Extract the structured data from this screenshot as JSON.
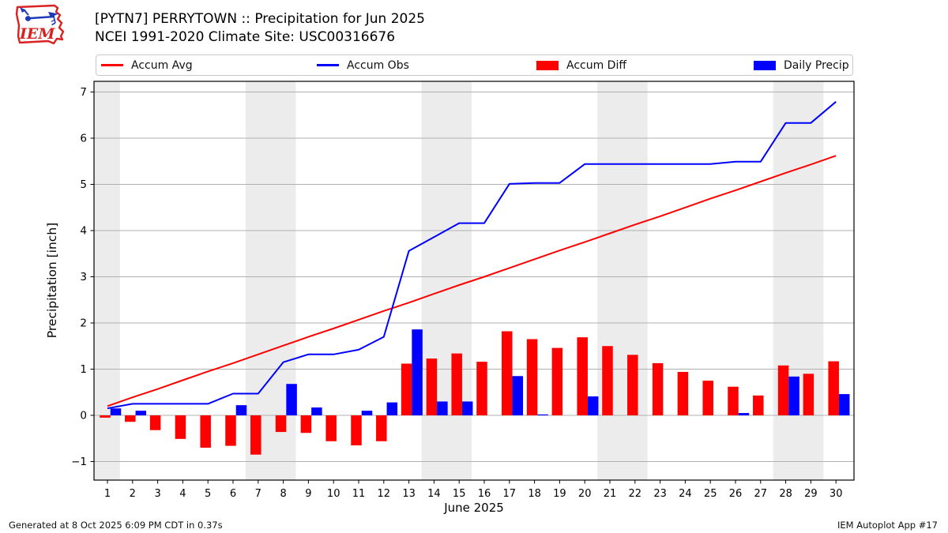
{
  "header": {
    "title_line1": "[PYTN7] PERRYTOWN :: Precipitation for Jun 2025",
    "title_line2": "NCEI 1991-2020 Climate Site: USC00316676",
    "logo_text": "IEM"
  },
  "legend": {
    "items": [
      {
        "label": "Accum Avg",
        "type": "line",
        "color": "#ff0000"
      },
      {
        "label": "Accum Obs",
        "type": "line",
        "color": "#0000ff"
      },
      {
        "label": "Accum Diff",
        "type": "patch",
        "color": "#ff0000"
      },
      {
        "label": "Daily Precip",
        "type": "patch",
        "color": "#0000ff"
      }
    ]
  },
  "chart_data": {
    "type": "bar+line",
    "title": "[PYTN7] PERRYTOWN :: Precipitation for Jun 2025",
    "xlabel": "June 2025",
    "ylabel": "Precipitation [inch]",
    "x": [
      1,
      2,
      3,
      4,
      5,
      6,
      7,
      8,
      9,
      10,
      11,
      12,
      13,
      14,
      15,
      16,
      17,
      18,
      19,
      20,
      21,
      22,
      23,
      24,
      25,
      26,
      27,
      28,
      29,
      30
    ],
    "xtick_labels": [
      "1",
      "2",
      "3",
      "4",
      "5",
      "6",
      "7",
      "8",
      "9",
      "10",
      "11",
      "12",
      "13",
      "14",
      "15",
      "16",
      "17",
      "18",
      "19",
      "20",
      "21",
      "22",
      "23",
      "24",
      "25",
      "26",
      "27",
      "28",
      "29",
      "30"
    ],
    "yticks": [
      -1,
      0,
      1,
      2,
      3,
      4,
      5,
      6,
      7
    ],
    "ytick_labels": [
      "−1",
      "0",
      "1",
      "2",
      "3",
      "4",
      "5",
      "6",
      "7"
    ],
    "ylim": [
      -1.4,
      7.23
    ],
    "xlim": [
      0.47,
      30.72
    ],
    "grid": true,
    "legend_position": "top",
    "series": [
      {
        "name": "Accum Avg",
        "type": "line",
        "color": "#ff0000",
        "values": [
          0.2,
          0.39,
          0.57,
          0.76,
          0.95,
          1.13,
          1.32,
          1.51,
          1.7,
          1.88,
          2.07,
          2.26,
          2.44,
          2.63,
          2.82,
          3.0,
          3.19,
          3.38,
          3.57,
          3.75,
          3.94,
          4.13,
          4.31,
          4.5,
          4.69,
          4.87,
          5.06,
          5.25,
          5.43,
          5.62
        ]
      },
      {
        "name": "Accum Obs",
        "type": "line",
        "color": "#0000ff",
        "values": [
          0.15,
          0.25,
          0.25,
          0.25,
          0.25,
          0.47,
          0.47,
          1.15,
          1.32,
          1.32,
          1.42,
          1.7,
          3.56,
          3.86,
          4.16,
          4.16,
          5.01,
          5.03,
          5.03,
          5.44,
          5.44,
          5.44,
          5.44,
          5.44,
          5.44,
          5.49,
          5.49,
          6.33,
          6.33,
          6.79
        ]
      },
      {
        "name": "Accum Diff",
        "type": "bar",
        "color": "#ff0000",
        "values": [
          -0.05,
          -0.14,
          -0.32,
          -0.51,
          -0.7,
          -0.66,
          -0.85,
          -0.36,
          -0.38,
          -0.56,
          -0.65,
          -0.56,
          1.12,
          1.23,
          1.34,
          1.16,
          1.82,
          1.65,
          1.46,
          1.69,
          1.5,
          1.31,
          1.13,
          0.94,
          0.75,
          0.62,
          0.43,
          1.08,
          0.9,
          1.17
        ]
      },
      {
        "name": "Daily Precip",
        "type": "bar",
        "color": "#0000ff",
        "values": [
          0.15,
          0.1,
          0,
          0,
          0,
          0.22,
          0,
          0.68,
          0.17,
          0,
          0.1,
          0.28,
          1.86,
          0.3,
          0.3,
          0,
          0.85,
          0.02,
          0,
          0.41,
          0,
          0,
          0,
          0,
          0,
          0.05,
          0,
          0.84,
          0,
          0.46
        ]
      }
    ],
    "weekend_bands": [
      [
        0.47,
        1.5
      ],
      [
        6.5,
        8.5
      ],
      [
        13.5,
        15.5
      ],
      [
        20.5,
        22.5
      ],
      [
        27.5,
        29.5
      ]
    ],
    "band_color": "#ececec",
    "grid_color": "#b0b0b0",
    "spine_color": "#000000"
  },
  "footer": {
    "left": "Generated at 8 Oct 2025 6:09 PM CDT in 0.37s",
    "right": "IEM Autoplot App #17"
  }
}
